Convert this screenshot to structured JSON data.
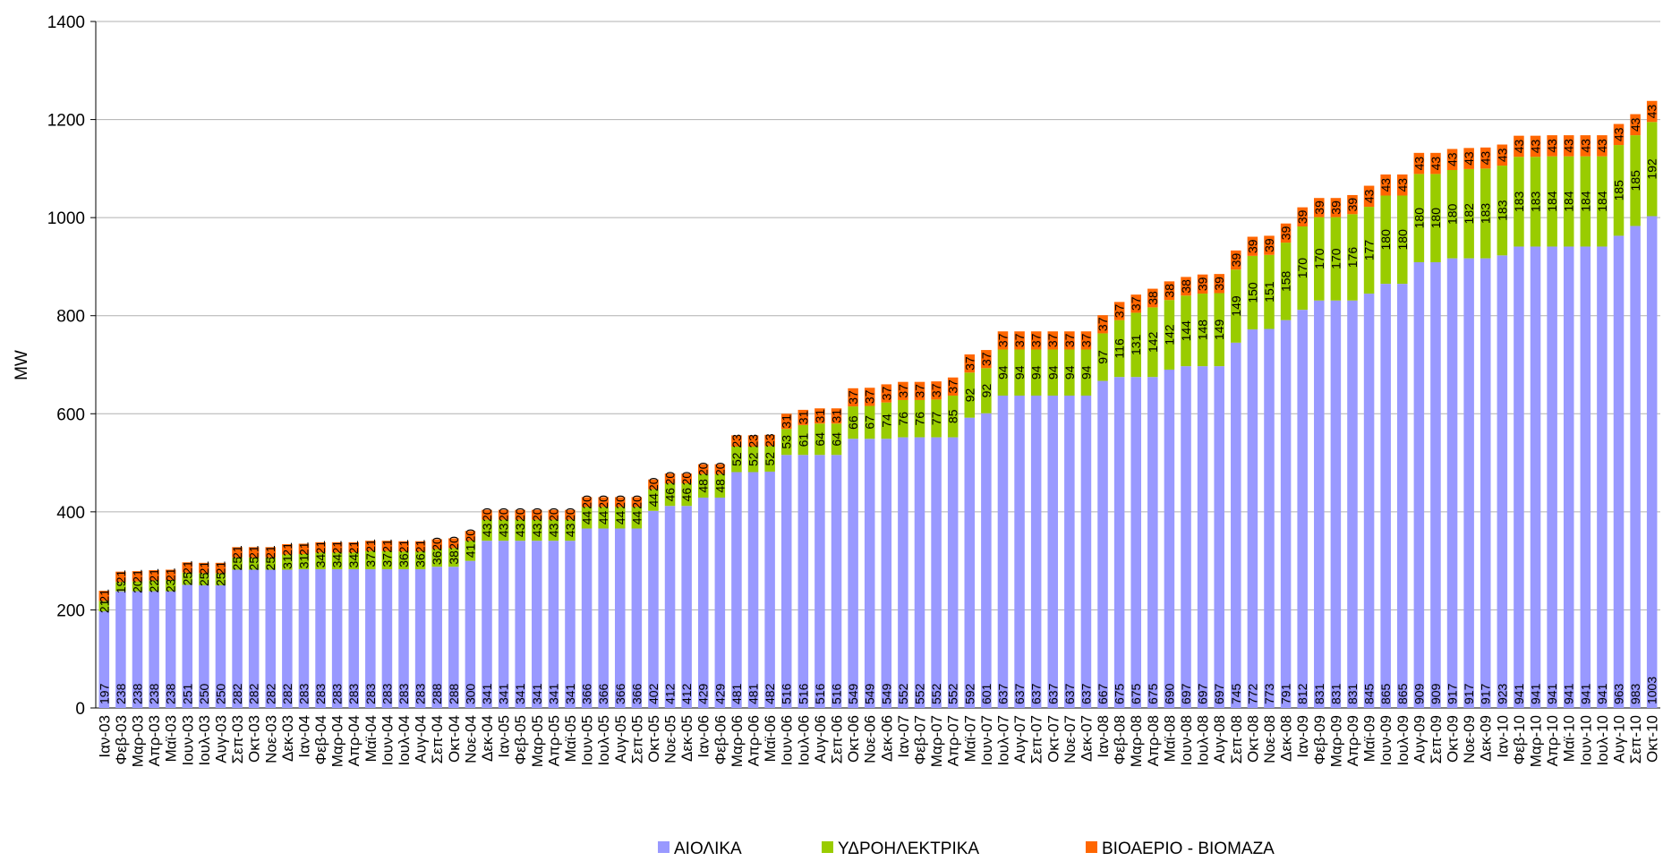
{
  "chart_data": {
    "type": "stacked_bar",
    "y_label": "MW",
    "categories": [
      "Ιαν-03",
      "Φεβ-03",
      "Μαρ-03",
      "Απρ-03",
      "Μαϊ-03",
      "Ιουν-03",
      "Ιουλ-03",
      "Αυγ-03",
      "Σεπ-03",
      "Οκτ-03",
      "Νοε-03",
      "Δεκ-03",
      "Ιαν-04",
      "Φεβ-04",
      "Μαρ-04",
      "Απρ-04",
      "Μαϊ-04",
      "Ιουν-04",
      "Ιουλ-04",
      "Αυγ-04",
      "Σεπ-04",
      "Οκτ-04",
      "Νοε-04",
      "Δεκ-04",
      "Ιαν-05",
      "Φεβ-05",
      "Μαρ-05",
      "Απρ-05",
      "Μαϊ-05",
      "Ιουν-05",
      "Ιουλ-05",
      "Αυγ-05",
      "Σεπ-05",
      "Οκτ-05",
      "Νοε-05",
      "Δεκ-05",
      "Ιαν-06",
      "Φεβ-06",
      "Μαρ-06",
      "Απρ-06",
      "Μαϊ-06",
      "Ιουν-06",
      "Ιουλ-06",
      "Αυγ-06",
      "Σεπ-06",
      "Οκτ-06",
      "Νοε-06",
      "Δεκ-06",
      "Ιαν-07",
      "Φεβ-07",
      "Μαρ-07",
      "Απρ-07",
      "Μαϊ-07",
      "Ιουν-07",
      "Ιουλ-07",
      "Αυγ-07",
      "Σεπ-07",
      "Οκτ-07",
      "Νοε-07",
      "Δεκ-07",
      "Ιαν-08",
      "Φεβ-08",
      "Μαρ-08",
      "Απρ-08",
      "Μαϊ-08",
      "Ιουν-08",
      "Ιουλ-08",
      "Αυγ-08",
      "Σεπ-08",
      "Οκτ-08",
      "Νοε-08",
      "Δεκ-08",
      "Ιαν-09",
      "Φεβ-09",
      "Μαρ-09",
      "Απρ-09",
      "Μαϊ-09",
      "Ιουν-09",
      "Ιουλ-09",
      "Αυγ-09",
      "Σεπ-09",
      "Οκτ-09",
      "Νοε-09",
      "Δεκ-09",
      "Ιαν-10",
      "Φεβ-10",
      "Μαρ-10",
      "Απρ-10",
      "Μαϊ-10",
      "Ιουν-10",
      "Ιουλ-10",
      "Αυγ-10",
      "Σεπ-10",
      "Οκτ-10"
    ],
    "series": [
      {
        "name": "ΑΙΟΛΙΚΑ",
        "color": "#9999ff",
        "values": [
          197,
          238,
          238,
          238,
          238,
          251,
          250,
          250,
          282,
          282,
          282,
          282,
          283,
          283,
          283,
          283,
          283,
          283,
          283,
          283,
          288,
          288,
          300,
          341,
          341,
          341,
          341,
          341,
          341,
          366,
          366,
          366,
          366,
          402,
          412,
          412,
          429,
          429,
          481,
          481,
          482,
          516,
          516,
          516,
          516,
          549,
          549,
          549,
          552,
          552,
          552,
          552,
          592,
          601,
          637,
          637,
          637,
          637,
          637,
          637,
          667,
          675,
          675,
          675,
          690,
          697,
          697,
          697,
          745,
          772,
          773,
          791,
          812,
          831,
          831,
          831,
          845,
          865,
          865,
          909,
          909,
          917,
          917,
          917,
          923,
          941,
          941,
          941,
          941,
          941,
          941,
          963,
          983,
          1003
        ]
      },
      {
        "name": "ΥΔΡΟΗΛΕΚΤΡΙΚΑ",
        "color": "#99cc00",
        "values": [
          21,
          19,
          20,
          22,
          23,
          25,
          25,
          25,
          25,
          25,
          25,
          31,
          31,
          34,
          34,
          34,
          37,
          37,
          36,
          36,
          36,
          38,
          41,
          43,
          43,
          43,
          43,
          43,
          43,
          44,
          44,
          44,
          44,
          44,
          46,
          46,
          48,
          48,
          52,
          52,
          52,
          53,
          61,
          64,
          64,
          66,
          67,
          74,
          76,
          76,
          77,
          85,
          92,
          92,
          94,
          94,
          94,
          94,
          94,
          94,
          97,
          116,
          131,
          142,
          142,
          144,
          148,
          149,
          149,
          150,
          151,
          158,
          170,
          170,
          170,
          176,
          177,
          180,
          180,
          180,
          180,
          180,
          182,
          183,
          183,
          183,
          183,
          184,
          184,
          184,
          184,
          185,
          185,
          192
        ]
      },
      {
        "name": "ΒΙΟΑΕΡΙΟ - ΒΙΟΜΑΖΑ",
        "color": "#ff6600",
        "values": [
          21,
          21,
          21,
          21,
          21,
          21,
          21,
          21,
          21,
          21,
          21,
          21,
          21,
          21,
          21,
          21,
          21,
          21,
          21,
          21,
          20,
          20,
          20,
          20,
          20,
          20,
          20,
          20,
          20,
          20,
          20,
          20,
          20,
          20,
          20,
          20,
          20,
          20,
          23,
          23,
          23,
          31,
          31,
          31,
          31,
          37,
          37,
          37,
          37,
          37,
          37,
          37,
          37,
          37,
          37,
          37,
          37,
          37,
          37,
          37,
          37,
          37,
          37,
          38,
          38,
          38,
          39,
          39,
          39,
          39,
          39,
          39,
          39,
          39,
          39,
          39,
          43,
          43,
          43,
          43,
          43,
          43,
          43,
          43,
          43,
          43,
          43,
          43,
          43,
          43,
          43,
          43,
          43,
          43
        ]
      }
    ],
    "ylim": [
      0,
      1400
    ],
    "yticks": [
      0,
      200,
      400,
      600,
      800,
      1000,
      1200,
      1400
    ],
    "grid": true,
    "legend": "bottom"
  }
}
